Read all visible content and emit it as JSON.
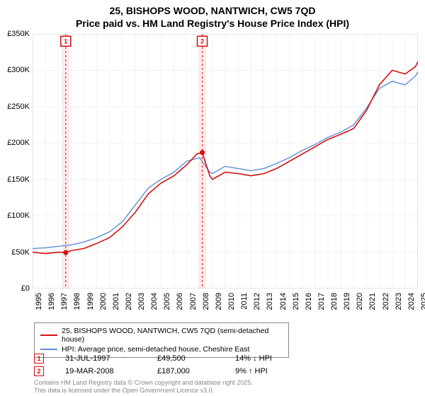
{
  "title_line1": "25, BISHOPS WOOD, NANTWICH, CW5 7QD",
  "title_line2": "Price paid vs. HM Land Registry's House Price Index (HPI)",
  "chart": {
    "type": "line",
    "background_color": "#ffffff",
    "grid_color": "#f2f2f2",
    "border_color": "#cccccc",
    "ylim": [
      0,
      350000
    ],
    "ytick_step": 50000,
    "y_labels": [
      "£0",
      "£50K",
      "£100K",
      "£150K",
      "£200K",
      "£250K",
      "£300K",
      "£350K"
    ],
    "xlim": [
      1995,
      2025
    ],
    "x_labels": [
      "1995",
      "1996",
      "1997",
      "1998",
      "1999",
      "2000",
      "2001",
      "2002",
      "2003",
      "2004",
      "2005",
      "2006",
      "2007",
      "2008",
      "2009",
      "2010",
      "2011",
      "2012",
      "2013",
      "2014",
      "2015",
      "2016",
      "2017",
      "2018",
      "2019",
      "2020",
      "2021",
      "2022",
      "2023",
      "2024",
      "2025"
    ],
    "series_red": {
      "color": "#d40f0f",
      "width": 1.6,
      "points": [
        [
          1995,
          50000
        ],
        [
          1996,
          48000
        ],
        [
          1997,
          50000
        ],
        [
          1997.5,
          49500
        ],
        [
          1998,
          52000
        ],
        [
          1999,
          55000
        ],
        [
          2000,
          62000
        ],
        [
          2001,
          70000
        ],
        [
          2002,
          85000
        ],
        [
          2003,
          105000
        ],
        [
          2004,
          130000
        ],
        [
          2005,
          145000
        ],
        [
          2006,
          155000
        ],
        [
          2007,
          170000
        ],
        [
          2007.8,
          185000
        ],
        [
          2008.2,
          187000
        ],
        [
          2008.8,
          155000
        ],
        [
          2009,
          150000
        ],
        [
          2010,
          160000
        ],
        [
          2011,
          158000
        ],
        [
          2012,
          155000
        ],
        [
          2013,
          158000
        ],
        [
          2014,
          165000
        ],
        [
          2015,
          175000
        ],
        [
          2016,
          185000
        ],
        [
          2017,
          195000
        ],
        [
          2018,
          205000
        ],
        [
          2019,
          212000
        ],
        [
          2020,
          220000
        ],
        [
          2021,
          245000
        ],
        [
          2022,
          280000
        ],
        [
          2023,
          300000
        ],
        [
          2024,
          295000
        ],
        [
          2024.8,
          305000
        ],
        [
          2025,
          312000
        ]
      ]
    },
    "series_blue": {
      "color": "#5b8fd6",
      "width": 1.4,
      "points": [
        [
          1995,
          55000
        ],
        [
          1996,
          56000
        ],
        [
          1997,
          58000
        ],
        [
          1998,
          60000
        ],
        [
          1999,
          64000
        ],
        [
          2000,
          70000
        ],
        [
          2001,
          78000
        ],
        [
          2002,
          92000
        ],
        [
          2003,
          115000
        ],
        [
          2004,
          138000
        ],
        [
          2005,
          150000
        ],
        [
          2006,
          160000
        ],
        [
          2007,
          175000
        ],
        [
          2008,
          180000
        ],
        [
          2008.8,
          160000
        ],
        [
          2009,
          158000
        ],
        [
          2010,
          168000
        ],
        [
          2011,
          165000
        ],
        [
          2012,
          162000
        ],
        [
          2013,
          165000
        ],
        [
          2014,
          172000
        ],
        [
          2015,
          180000
        ],
        [
          2016,
          190000
        ],
        [
          2017,
          198000
        ],
        [
          2018,
          208000
        ],
        [
          2019,
          215000
        ],
        [
          2020,
          225000
        ],
        [
          2021,
          248000
        ],
        [
          2022,
          275000
        ],
        [
          2023,
          285000
        ],
        [
          2024,
          280000
        ],
        [
          2024.8,
          292000
        ],
        [
          2025,
          298000
        ]
      ]
    },
    "markers": [
      {
        "num": "1",
        "x": 1997.58,
        "y": 49500,
        "color": "#d40f0f",
        "band_color": "#fdeaea"
      },
      {
        "num": "2",
        "x": 2008.21,
        "y": 187000,
        "color": "#d40f0f",
        "band_color": "#fdeaea"
      }
    ],
    "marker_band_width_years": 0.6,
    "marker_tag_y": 340000
  },
  "legend": {
    "series1_label": "25, BISHOPS WOOD, NANTWICH, CW5 7QD (semi-detached house)",
    "series1_color": "#d40f0f",
    "series2_label": "HPI: Average price, semi-detached house, Cheshire East",
    "series2_color": "#5b8fd6"
  },
  "data_points": [
    {
      "num": "1",
      "color": "#d40f0f",
      "date": "31-JUL-1997",
      "price": "£49,500",
      "delta": "14% ↓ HPI"
    },
    {
      "num": "2",
      "color": "#d40f0f",
      "date": "19-MAR-2008",
      "price": "£187,000",
      "delta": "9% ↑ HPI"
    }
  ],
  "footer_line1": "Contains HM Land Registry data © Crown copyright and database right 2025.",
  "footer_line2": "This data is licensed under the Open Government Licence v3.0."
}
